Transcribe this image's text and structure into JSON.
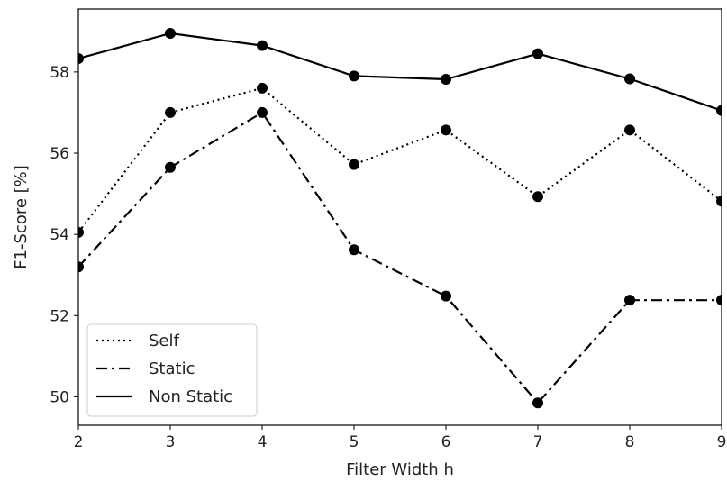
{
  "chart_data": {
    "type": "line",
    "xlabel": "Filter Width h",
    "ylabel": "F1-Score [%]",
    "x": [
      2,
      3,
      4,
      5,
      6,
      7,
      8,
      9
    ],
    "xlim": [
      2,
      9
    ],
    "ylim": [
      49.3,
      59.55
    ],
    "xticks": [
      "2",
      "3",
      "4",
      "5",
      "6",
      "7",
      "8",
      "9"
    ],
    "yticks": [
      "50",
      "52",
      "54",
      "56",
      "58"
    ],
    "grid": false,
    "legend_position": "lower-left",
    "series": [
      {
        "name": "Self",
        "style": "dotted",
        "color": "#000000",
        "values": [
          54.05,
          57.0,
          57.6,
          55.72,
          56.57,
          54.93,
          56.57,
          54.82
        ]
      },
      {
        "name": "Static",
        "style": "dashdot",
        "color": "#000000",
        "values": [
          53.2,
          55.65,
          57.0,
          53.62,
          52.48,
          49.85,
          52.38,
          52.38
        ]
      },
      {
        "name": "Non Static",
        "style": "solid",
        "color": "#000000",
        "values": [
          58.33,
          58.95,
          58.65,
          57.9,
          57.82,
          58.45,
          57.83,
          57.05
        ]
      }
    ]
  }
}
